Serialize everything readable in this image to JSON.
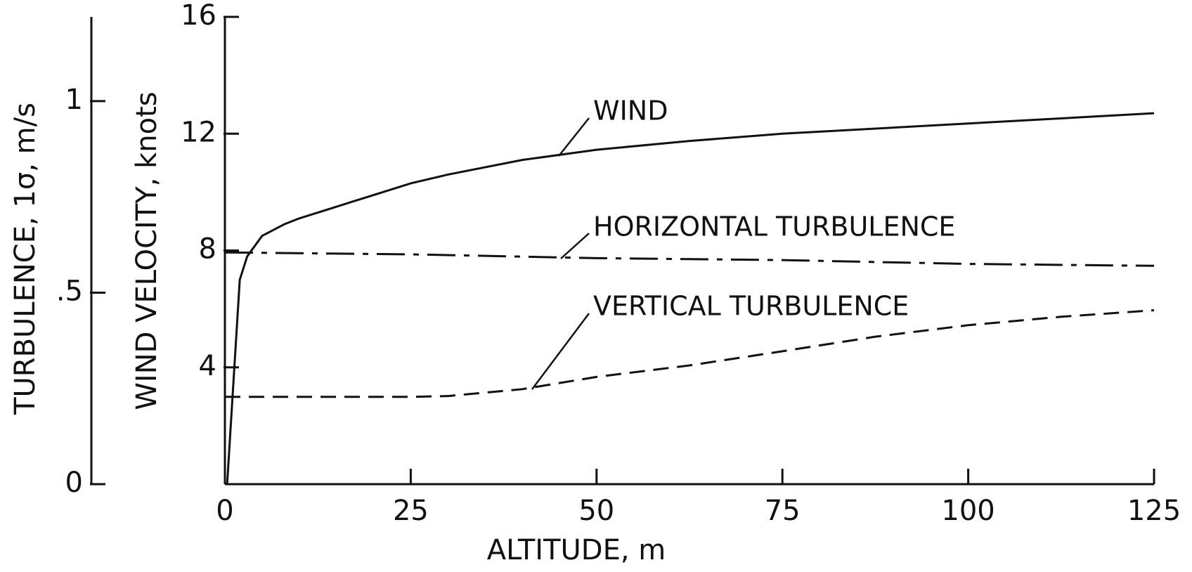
{
  "chart_data": {
    "type": "line",
    "x_label": "ALTITUDE, m",
    "y_label": "WIND VELOCITY, knots",
    "y2_label": "TURBULENCE, 1σ, m/s",
    "xlim": [
      0,
      125
    ],
    "xticks": [
      0,
      25,
      50,
      75,
      100,
      125
    ],
    "ylim": [
      0,
      16
    ],
    "yticks": [
      4,
      8,
      12,
      16
    ],
    "y2lim": [
      0,
      1.22
    ],
    "y2ticks": [
      0,
      {
        "value": 0.5,
        "label": ".5"
      },
      1
    ],
    "series": [
      {
        "name": "WIND",
        "color": "#111111",
        "dash": "solid",
        "x": [
          0.3,
          2,
          3,
          5,
          8,
          10,
          15,
          20,
          25,
          30,
          40,
          50,
          62.5,
          75,
          100,
          125
        ],
        "values": [
          0,
          7,
          7.8,
          8.5,
          8.9,
          9.1,
          9.5,
          9.9,
          10.3,
          10.6,
          11.1,
          11.45,
          11.75,
          12.0,
          12.35,
          12.7
        ]
      },
      {
        "name": "HORIZONTAL TURBULENCE",
        "color": "#111111",
        "dash": "dashdot",
        "axis": "y2",
        "x": [
          0,
          25,
          50,
          75,
          100,
          125
        ],
        "values": [
          0.605,
          0.6,
          0.59,
          0.585,
          0.575,
          0.57
        ]
      },
      {
        "name": "VERTICAL TURBULENCE",
        "color": "#111111",
        "dash": "dashed",
        "axis": "y2",
        "x": [
          0,
          25,
          30,
          40,
          50,
          62.5,
          75,
          87.5,
          100,
          112.5,
          125
        ],
        "values": [
          0.228,
          0.228,
          0.23,
          0.248,
          0.28,
          0.31,
          0.347,
          0.385,
          0.415,
          0.437,
          0.454
        ]
      }
    ]
  }
}
